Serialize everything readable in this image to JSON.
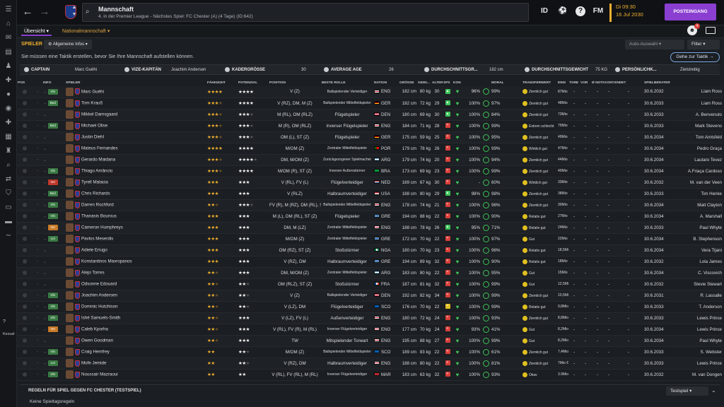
{
  "header": {
    "title": "Mannschaft",
    "subtitle": "4. in der Premier League - Nächstes Spiel: FC Chester (A) (4 Tage) (ID:642)",
    "id_label": "ID",
    "fm_label": "FM",
    "time": "Di 09:30",
    "date": "16 Jul 2030",
    "continue_label": "POSTEINGANG",
    "notification_count": "4"
  },
  "subnav": {
    "tab1": "Übersicht",
    "tab2": "Nationalmannschaft"
  },
  "filterbar": {
    "section": "SPIELER",
    "info_dropdown": "Allgemeine Infos",
    "auto_dropdown": "Auto-Auswahl",
    "filter_dropdown": "Filter",
    "hint": "Sie müssen eine Taktik erstellen, bevor Sie Ihre Mannschaft aufstellen können.",
    "tactic_button": "Gehe zur Taktik"
  },
  "captains": {
    "captain_label": "CAPTAIN",
    "captain": "Marc Guéhi",
    "vice_label": "VIZE-KAPITÄN",
    "vice": "Joachim Andersen",
    "squad_label": "KADERGRÖSSE",
    "squad": "30",
    "age_label": "AVERAGE AGE",
    "age": "26",
    "height_label": "DURCHSCHNITTSGR...",
    "height": "182 cm",
    "weight_label": "DURCHSCHNITTSGEWICHT",
    "weight": "75 KG",
    "pers_label": "PERSÖNLICHK...",
    "pers": "Zielstrebig"
  },
  "columns": [
    "POS",
    "",
    "INFO",
    "SPIELER",
    "",
    "FÄHIGKEIT",
    "POTENZIAL",
    "POSITION",
    "BESTE ROLLE",
    "NATION",
    "GRÖSSE",
    "GEWI...",
    "ALTER",
    "SPX",
    "KON",
    "",
    "MORAL",
    "TRANSFERWERT",
    "EINS",
    "TORE",
    "VOR",
    "Ø NOTE",
    "KONT",
    "ENDET",
    "SPIELBERATER"
  ],
  "players": [
    {
      "info": "Vln",
      "info_color": "#3a7a44",
      "name": "Marc Guéhi",
      "ab": 4,
      "po": 4,
      "position": "V (Z)",
      "role": "Ballspielender Verteidiger",
      "role_small": true,
      "flag": "eng",
      "nation": "ENG",
      "height": "182 cm",
      "weight": "80 kg",
      "age": "30",
      "spx_color": "#3ec45a",
      "spx": "▲",
      "kon": "96%",
      "ring": "99%",
      "moral": "Ziemlich gut",
      "transfer": "87Mio € - 105Mio €",
      "eins": "-",
      "tore": "-",
      "vor": "-",
      "note": "-",
      "end": "30.6.2032",
      "agent": "Liam Ross"
    },
    {
      "info": "Bed",
      "info_color": "#3a7a44",
      "name": "Tom Krauß",
      "ab": 3.5,
      "po": 4,
      "position": "V (RZ), DM, M (Z)",
      "role": "Ballspielender Mittelfeldspieler",
      "role_small": true,
      "flag": "ger",
      "nation": "GER",
      "height": "182 cm",
      "weight": "72 kg",
      "age": "29",
      "spx_color": "#3ec45a",
      "spx": "▲",
      "kon": "100%",
      "ring": "97%",
      "moral": "Ziemlich gut",
      "transfer": "48Mio € - 56Mio €",
      "eins": "-",
      "tore": "-",
      "vor": "-",
      "note": "-",
      "end": "30.6.2033",
      "agent": "Liam Ross"
    },
    {
      "info": "",
      "info_color": "",
      "name": "Mikkel Damsgaard",
      "ab": 3.5,
      "po": 3.5,
      "position": "M (RL), OM (RLZ)",
      "role": "Flügelspieler",
      "role_small": false,
      "flag": "den",
      "nation": "DEN",
      "height": "180 cm",
      "weight": "69 kg",
      "age": "30",
      "spx_color": "#3ec45a",
      "spx": "▲",
      "kon": "100%",
      "ring": "84%",
      "moral": "Ziemlich gut",
      "transfer": "73Mio € - 85Mio €",
      "eins": "-",
      "tore": "-",
      "vor": "-",
      "note": "-",
      "end": "30.6.2033",
      "agent": "A. Benvenuto"
    },
    {
      "info": "Bed",
      "info_color": "#3a7a44",
      "name": "Michael Olise",
      "ab": 3.5,
      "po": 3.5,
      "position": "M (R), OM (RLZ)",
      "role": "Inverser Flügelspieler",
      "role_small": false,
      "flag": "eng",
      "nation": "ENG",
      "height": "184 cm",
      "weight": "71 kg",
      "age": "28",
      "spx_color": "#d8403a",
      "spx": "+",
      "kon": "100%",
      "ring": "99%",
      "moral": "Extrem schlecht",
      "transfer": "75Mio € - 87Mio €",
      "eins": "-",
      "tore": "-",
      "vor": "-",
      "note": "-",
      "end": "30.6.2033",
      "agent": "Mark Stevens"
    },
    {
      "info": "",
      "info_color": "",
      "name": "Justin Diehl",
      "ab": 3.5,
      "po": 3.5,
      "position": "OM (L), ST (Z)",
      "role": "Flügelspieler",
      "role_small": false,
      "flag": "ger",
      "nation": "GER",
      "height": "175 cm",
      "weight": "59 kg",
      "age": "25",
      "spx_color": "#d8403a",
      "spx": "+",
      "kon": "100%",
      "ring": "95%",
      "moral": "Ziemlich gut",
      "transfer": "49Mio € - 58Mio €",
      "eins": "-",
      "tore": "-",
      "vor": "-",
      "note": "-",
      "end": "30.6.2034",
      "agent": "Tom Amtsfeld"
    },
    {
      "info": "",
      "info_color": "",
      "name": "Mateus Fernandes",
      "ab": 4,
      "po": 4,
      "position": "M/OM (Z)",
      "role": "Zentraler Mittelfeldspieler",
      "role_small": true,
      "flag": "por",
      "nation": "POR",
      "height": "179 cm",
      "weight": "78 kg",
      "age": "26",
      "spx_color": "#d8403a",
      "spx": "+",
      "kon": "100%",
      "ring": "99%",
      "moral": "Wirklich gut",
      "transfer": "47Mio € - 55Mio €",
      "eins": "-",
      "tore": "-",
      "vor": "-",
      "note": "-",
      "end": "30.6.2034",
      "agent": "Pedro Graça"
    },
    {
      "info": "",
      "info_color": "",
      "name": "Gerardo Maidana",
      "ab": 3.5,
      "po": 4.5,
      "position": "DM, M/OM (Z)",
      "role": "Zurückgezogener Spielmacher",
      "role_small": true,
      "flag": "arg",
      "nation": "ARG",
      "height": "179 cm",
      "weight": "74 kg",
      "age": "20",
      "spx_color": "#d8403a",
      "spx": "+",
      "kon": "100%",
      "ring": "94%",
      "moral": "Ziemlich gut",
      "transfer": "44Mio € - 51Mio €",
      "eins": "-",
      "tore": "-",
      "vor": "-",
      "note": "-",
      "end": "30.6.2034",
      "agent": "Lautaro Tevez"
    },
    {
      "info": "Vln",
      "info_color": "#3a7a44",
      "name": "Thiago Amâncio",
      "ab": 3.5,
      "po": 4,
      "position": "M/OM (R), ST (Z)",
      "role": "Inverser Außenstürmer",
      "role_small": true,
      "flag": "bra",
      "nation": "BRA",
      "height": "173 cm",
      "weight": "69 kg",
      "age": "23",
      "spx_color": "#d8403a",
      "spx": "+",
      "kon": "100%",
      "ring": "99%",
      "moral": "Ziemlich gut",
      "transfer": "40Mio € - 46Mio €",
      "eins": "-",
      "tore": "-",
      "vor": "-",
      "note": "-",
      "end": "30.6.2034",
      "agent": "A.Friaça Cardoso"
    },
    {
      "info": "Ver",
      "info_color": "#c0392b",
      "name": "Tyrell Malacia",
      "ab": 3,
      "po": 3,
      "position": "V (RL), FV (L)",
      "role": "Flügelverteidiger",
      "role_small": false,
      "flag": "ned",
      "nation": "NED",
      "height": "169 cm",
      "weight": "67 kg",
      "age": "30",
      "spx_color": "#d8403a",
      "spx": "+",
      "kon": "-",
      "ring": "60%",
      "moral": "Wirklich gut",
      "transfer": "33Mio € - 39Mio €",
      "eins": "-",
      "tore": "-",
      "vor": "-",
      "note": "-",
      "end": "30.6.2032",
      "agent": "M. van der Veen"
    },
    {
      "info": "Bed",
      "info_color": "#3a7a44",
      "name": "Chris Richards",
      "ab": 3,
      "po": 3,
      "position": "V (RLZ)",
      "role": "Halbraumverteidiger",
      "role_small": false,
      "flag": "usa",
      "nation": "USA",
      "height": "188 cm",
      "weight": "80 kg",
      "age": "29",
      "spx_color": "#3ec45a",
      "spx": "▲",
      "kon": "98%",
      "ring": "98%",
      "moral": "Ziemlich gut",
      "transfer": "38Mio € - 40Mio €",
      "eins": "-",
      "tore": "-",
      "vor": "-",
      "note": "-",
      "end": "30.6.2033",
      "agent": "Tim Henke"
    },
    {
      "info": "Vln",
      "info_color": "#3a7a44",
      "name": "Darren Rochford",
      "ab": 2.5,
      "po": 3.5,
      "position": "FV (R), M (RZ), DM (RL), ST (Z)",
      "role": "Ballspielender Mittelfeldspieler",
      "role_small": true,
      "flag": "eng",
      "nation": "ENG",
      "height": "178 cm",
      "weight": "74 kg",
      "age": "21",
      "spx_color": "#d8403a",
      "spx": "+",
      "kon": "100%",
      "ring": "96%",
      "moral": "Ziemlich gut",
      "transfer": "30Mio € - 35Mio €",
      "eins": "-",
      "tore": "-",
      "vor": "-",
      "note": "-",
      "end": "30.6.2034",
      "agent": "Matt Clayton"
    },
    {
      "info": "Vln",
      "info_color": "#3a7a44",
      "name": "Thanasis Bourous",
      "ab": 3,
      "po": 3,
      "position": "M (L), OM (RL), ST (Z)",
      "role": "Flügelspieler",
      "role_small": false,
      "flag": "gre",
      "nation": "GRE",
      "height": "194 cm",
      "weight": "88 kg",
      "age": "22",
      "spx_color": "#d8403a",
      "spx": "+",
      "kon": "100%",
      "ring": "90%",
      "moral": "Relativ gut",
      "transfer": "27Mio € - 31Mio €",
      "eins": "-",
      "tore": "-",
      "vor": "-",
      "note": "-",
      "end": "30.6.2034",
      "agent": "A. Marshall"
    },
    {
      "info": "Ver",
      "info_color": "#c87a28",
      "name": "Cameron Humphreys",
      "ab": 3,
      "po": 3,
      "position": "DM, M (LZ)",
      "role": "Zentraler Mittelfeldspieler",
      "role_small": true,
      "flag": "eng",
      "nation": "ENG",
      "height": "188 cm",
      "weight": "78 kg",
      "age": "26",
      "spx_color": "#3ec45a",
      "spx": "▲",
      "kon": "95%",
      "ring": "71%",
      "moral": "Relativ gut",
      "transfer": "24Mio € - 28Mio €",
      "eins": "-",
      "tore": "-",
      "vor": "-",
      "note": "-",
      "end": "30.6.2033",
      "agent": "Paul Whyte"
    },
    {
      "info": "Lei",
      "info_color": "#3a7a44",
      "name": "Pavlos Meserdis",
      "ab": 3,
      "po": 3,
      "position": "M/OM (Z)",
      "role": "Zentraler Mittelfeldspieler",
      "role_small": true,
      "flag": "gre",
      "nation": "GRE",
      "height": "172 cm",
      "weight": "70 kg",
      "age": "22",
      "spx_color": "#d8403a",
      "spx": "+",
      "kon": "100%",
      "ring": "97%",
      "moral": "Gut",
      "transfer": "22Mio € - 26Mio €",
      "eins": "-",
      "tore": "-",
      "vor": "-",
      "note": "-",
      "end": "30.6.2034",
      "agent": "B. Stephenson"
    },
    {
      "info": "",
      "info_color": "",
      "name": "Adiele Eriugo",
      "ab": 3,
      "po": 3,
      "position": "OM (RZ), ST (Z)",
      "role": "Stoßstürmer",
      "role_small": false,
      "flag": "nga",
      "nation": "NGA",
      "height": "180 cm",
      "weight": "70 kg",
      "age": "23",
      "spx_color": "#d8403a",
      "spx": "+",
      "kon": "100%",
      "ring": "96%",
      "moral": "Relativ gut",
      "transfer": "18,5Mio € - 21Mio €",
      "eins": "-",
      "tore": "-",
      "vor": "-",
      "note": "-",
      "end": "30.6.2034",
      "agent": "Vera Tijani"
    },
    {
      "info": "",
      "info_color": "",
      "name": "Konstantinos Mavropanos",
      "ab": 3,
      "po": 3,
      "position": "V (RZ), DM",
      "role": "Halbraumverteidiger",
      "role_small": false,
      "flag": "gre",
      "nation": "GRE",
      "height": "194 cm",
      "weight": "89 kg",
      "age": "32",
      "spx_color": "#d8403a",
      "spx": "+",
      "kon": "100%",
      "ring": "90%",
      "moral": "Relativ gut",
      "transfer": "18Mio € - 21Mio €",
      "eins": "-",
      "tore": "-",
      "vor": "-",
      "note": "-",
      "end": "30.6.2032",
      "agent": "Lola James"
    },
    {
      "info": "",
      "info_color": "",
      "name": "Alejo Torres",
      "ab": 2.5,
      "po": 3,
      "position": "DM, M/OM (Z)",
      "role": "Zentraler Mittelfeldspieler",
      "role_small": true,
      "flag": "arg",
      "nation": "ARG",
      "height": "183 cm",
      "weight": "80 kg",
      "age": "22",
      "spx_color": "#d8403a",
      "spx": "+",
      "kon": "100%",
      "ring": "95%",
      "moral": "Gut",
      "transfer": "15Mio € - 18Mio €",
      "eins": "-",
      "tore": "-",
      "vor": "-",
      "note": "-",
      "end": "30.6.2034",
      "agent": "C. Viscovich"
    },
    {
      "info": "",
      "info_color": "",
      "name": "Odsonne Edouard",
      "ab": 2.5,
      "po": 2.5,
      "position": "OM (RLZ), ST (Z)",
      "role": "Stoßstürmer",
      "role_small": false,
      "flag": "fra",
      "nation": "FRA",
      "height": "187 cm",
      "weight": "81 kg",
      "age": "32",
      "spx_color": "#d8403a",
      "spx": "+",
      "kon": "100%",
      "ring": "99%",
      "moral": "Gut",
      "transfer": "12,5Mio € - 15Mio €",
      "eins": "-",
      "tore": "-",
      "vor": "-",
      "note": "-",
      "end": "30.6.2032",
      "agent": "Stevie Stewart"
    },
    {
      "info": "Vln",
      "info_color": "#3a7a44",
      "name": "Joachim Andersen",
      "ab": 2.5,
      "po": 2.5,
      "position": "V (Z)",
      "role": "Ballspielender Verteidiger",
      "role_small": true,
      "flag": "den",
      "nation": "DEN",
      "height": "192 cm",
      "weight": "82 kg",
      "age": "34",
      "spx_color": "#d8403a",
      "spx": "+",
      "kon": "100%",
      "ring": "99%",
      "moral": "Ziemlich gut",
      "transfer": "10,5Mio € - 12,5Mio €",
      "eins": "-",
      "tore": "-",
      "vor": "-",
      "note": "-",
      "end": "30.6.2031",
      "agent": "R. Lassalle"
    },
    {
      "info": "Vln",
      "info_color": "#3a7a44",
      "name": "Dominic Hutchison",
      "ab": 2.5,
      "po": 2.5,
      "position": "V (LZ), DM",
      "role": "Flügelverteidiger",
      "role_small": false,
      "flag": "sco",
      "nation": "SCO",
      "height": "176 cm",
      "weight": "70 kg",
      "age": "22",
      "spx_color": "#e0c020",
      "spx": "=",
      "kon": "100%",
      "ring": "99%",
      "moral": "Relativ gut",
      "transfer": "9,8Mio € - 11,5Mio €",
      "eins": "-",
      "tore": "-",
      "vor": "-",
      "note": "-",
      "end": "30.6.2033",
      "agent": "T. Anderson"
    },
    {
      "info": "Vln",
      "info_color": "#3a7a44",
      "name": "Ishé Samuels-Smith",
      "ab": 2.5,
      "po": 3,
      "position": "V (LZ), FV (L)",
      "role": "Außenverteidiger",
      "role_small": false,
      "flag": "eng",
      "nation": "ENG",
      "height": "180 cm",
      "weight": "72 kg",
      "age": "24",
      "spx_color": "#d8403a",
      "spx": "+",
      "kon": "100%",
      "ring": "93%",
      "moral": "Ziemlich gut",
      "transfer": "8,8Mio € - 10,5Mio €",
      "eins": "-",
      "tore": "-",
      "vor": "-",
      "note": "-",
      "end": "30.6.2033",
      "agent": "Lewis Prince"
    },
    {
      "info": "Ver",
      "info_color": "#c87a28",
      "name": "Caleb Kporha",
      "ab": 2.5,
      "po": 3,
      "position": "V (RL), FV (R), M (RL)",
      "role": "Inverser Flügelverteidiger",
      "role_small": true,
      "flag": "eng",
      "nation": "ENG",
      "height": "177 cm",
      "weight": "70 kg",
      "age": "24",
      "spx_color": "#d8403a",
      "spx": "+",
      "kon": "93%",
      "ring": "41%",
      "moral": "Gut",
      "transfer": "8,2Mio € - 9,6Mio €",
      "eins": "-",
      "tore": "-",
      "vor": "-",
      "note": "-",
      "end": "30.6.2034",
      "agent": "Lewis Prince"
    },
    {
      "info": "",
      "info_color": "",
      "name": "Owen Goodman",
      "ab": 2.5,
      "po": 3,
      "position": "TW",
      "role": "Mitspielender Torwart",
      "role_small": false,
      "flag": "eng",
      "nation": "ENG",
      "height": "195 cm",
      "weight": "88 kg",
      "age": "27",
      "spx_color": "#d8403a",
      "spx": "+",
      "kon": "100%",
      "ring": "99%",
      "moral": "Gut",
      "transfer": "8,2Mio € - 9,6Mio €",
      "eins": "-",
      "tore": "-",
      "vor": "-",
      "note": "-",
      "end": "30.6.2034",
      "agent": "Paul Whyte"
    },
    {
      "info": "Vln",
      "info_color": "#3a7a44",
      "name": "Craig Hemfrey",
      "ab": 2,
      "po": 2.5,
      "position": "M/OM (Z)",
      "role": "Ballspielender Mittelfeldspieler",
      "role_small": true,
      "flag": "sco",
      "nation": "SCO",
      "height": "189 cm",
      "weight": "83 kg",
      "age": "22",
      "spx_color": "#d8403a",
      "spx": "+",
      "kon": "100%",
      "ring": "61%",
      "moral": "Ziemlich gut",
      "transfer": "7,4Mio € - 8,6Mio €",
      "eins": "-",
      "tore": "-",
      "vor": "-",
      "note": "-",
      "end": "30.6.2033",
      "agent": "S. Webster"
    },
    {
      "info": "Lei",
      "info_color": "#3a7a44",
      "name": "Mofe Jemide",
      "ab": 2,
      "po": 2.5,
      "position": "V (RZ), DM",
      "role": "Halbraumverteidiger",
      "role_small": false,
      "flag": "eng",
      "nation": "ENG",
      "height": "188 cm",
      "weight": "80 kg",
      "age": "22",
      "spx_color": "#d8403a",
      "spx": "+",
      "kon": "100%",
      "ring": "81%",
      "moral": "Ziemlich gut",
      "transfer": "7Mio € - 8,2Mio €",
      "eins": "-",
      "tore": "-",
      "vor": "-",
      "note": "-",
      "end": "30.6.2033",
      "agent": "Lewis Prince"
    },
    {
      "info": "Vln",
      "info_color": "#3a7a44",
      "name": "Noussair Mazraoui",
      "ab": 2,
      "po": 2,
      "position": "V (RL), FV (RL), M (RL)",
      "role": "Inverser Flügelverteidiger",
      "role_small": true,
      "flag": "mar",
      "nation": "MAR",
      "height": "183 cm",
      "weight": "63 kg",
      "age": "32",
      "spx_color": "#d8403a",
      "spx": "+",
      "kon": "100%",
      "ring": "93%",
      "moral": "Okav",
      "transfer": "3.9Mio €",
      "eins": "-",
      "tore": "-",
      "vor": "-",
      "note": "-",
      "end": "30.6.2032",
      "agent": "M. van Dongen"
    }
  ],
  "rules": {
    "title": "REGELN FÜR SPIEL GEGEN FC CHESTER (TESTSPIEL)",
    "text": "Keine Spieltagsregeln",
    "dropdown": "Testspiel"
  },
  "sidebar": {
    "zuzus": "Kezusl"
  },
  "colors": {
    "accent": "#8b3fd1",
    "gold": "#f0b030",
    "green": "#3ec45a",
    "red": "#d8403a"
  }
}
